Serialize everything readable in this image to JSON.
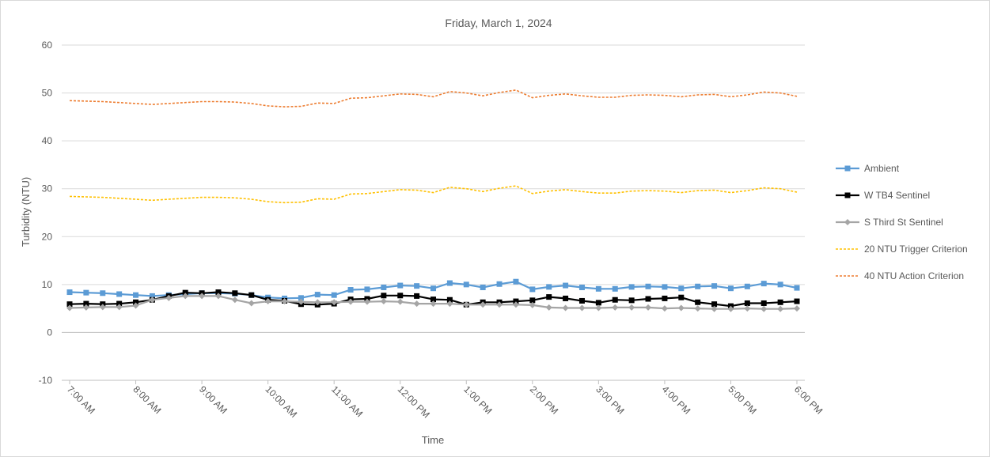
{
  "chart_data": {
    "type": "line",
    "title": "Friday, March 1, 2024",
    "xlabel": "Time",
    "ylabel": "Turbidity (NTU)",
    "ylim": [
      -10,
      60
    ],
    "yticks": [
      -10,
      0,
      10,
      20,
      30,
      40,
      50,
      60
    ],
    "grid": true,
    "legend_position": "right",
    "x_tick_labels": [
      "7:00 AM",
      "8:00 AM",
      "9:00 AM",
      "10:00 AM",
      "11:00 AM",
      "12:00 PM",
      "1:00 PM",
      "2:00 PM",
      "3:00 PM",
      "4:00 PM",
      "5:00 PM",
      "6:00 PM"
    ],
    "x_range_hours": [
      7,
      18
    ],
    "x_hours": [
      7.0,
      7.25,
      7.5,
      7.75,
      8.0,
      8.25,
      8.5,
      8.75,
      9.0,
      9.25,
      9.5,
      9.75,
      10.0,
      10.25,
      10.5,
      10.75,
      11.0,
      11.25,
      11.5,
      11.75,
      12.0,
      12.25,
      12.5,
      12.75,
      13.0,
      13.25,
      13.5,
      13.75,
      14.0,
      14.25,
      14.5,
      14.75,
      15.0,
      15.25,
      15.5,
      15.75,
      16.0,
      16.25,
      16.5,
      16.75,
      17.0,
      17.25,
      17.5,
      17.75,
      18.0
    ],
    "series": [
      {
        "name": "Ambient",
        "color": "#5B9BD5",
        "style": "solid",
        "marker": "square",
        "values": [
          8.4,
          8.3,
          8.2,
          8.0,
          7.8,
          7.6,
          7.8,
          8.0,
          8.2,
          8.2,
          8.1,
          7.8,
          7.3,
          7.1,
          7.2,
          7.9,
          7.8,
          8.9,
          9.0,
          9.4,
          9.8,
          9.7,
          9.2,
          10.3,
          10.0,
          9.4,
          10.1,
          10.6,
          9.0,
          9.5,
          9.8,
          9.4,
          9.1,
          9.1,
          9.5,
          9.6,
          9.5,
          9.2,
          9.6,
          9.7,
          9.2,
          9.6,
          10.2,
          10.0,
          9.3
        ]
      },
      {
        "name": "W TB4 Sentinel",
        "color": "#000000",
        "style": "solid",
        "marker": "square",
        "values": [
          5.9,
          6.0,
          5.9,
          6.0,
          6.3,
          6.8,
          7.6,
          8.3,
          8.2,
          8.4,
          8.2,
          7.8,
          6.8,
          6.6,
          5.9,
          5.8,
          6.0,
          6.9,
          7.0,
          7.7,
          7.7,
          7.6,
          6.9,
          6.8,
          5.8,
          6.3,
          6.3,
          6.5,
          6.7,
          7.4,
          7.1,
          6.6,
          6.2,
          6.8,
          6.7,
          7.0,
          7.1,
          7.3,
          6.3,
          5.9,
          5.5,
          6.1,
          6.1,
          6.3,
          6.5
        ]
      },
      {
        "name": "S Third St Sentinel",
        "color": "#A5A5A5",
        "style": "solid",
        "marker": "diamond",
        "values": [
          5.1,
          5.2,
          5.3,
          5.3,
          5.6,
          6.8,
          7.2,
          7.6,
          7.6,
          7.6,
          6.8,
          6.1,
          6.5,
          6.5,
          6.4,
          6.3,
          6.3,
          6.4,
          6.4,
          6.5,
          6.4,
          6.0,
          6.0,
          6.0,
          5.8,
          5.8,
          5.8,
          5.8,
          5.7,
          5.2,
          5.1,
          5.1,
          5.1,
          5.2,
          5.2,
          5.2,
          5.0,
          5.1,
          5.0,
          4.9,
          4.9,
          5.0,
          4.9,
          4.9,
          5.0
        ]
      },
      {
        "name": "20 NTU Trigger Criterion",
        "color": "#FFC000",
        "style": "dashed",
        "marker": "none",
        "values": [
          28.4,
          28.3,
          28.2,
          28.0,
          27.8,
          27.6,
          27.8,
          28.0,
          28.2,
          28.2,
          28.1,
          27.8,
          27.3,
          27.1,
          27.2,
          27.9,
          27.8,
          28.9,
          29.0,
          29.4,
          29.8,
          29.7,
          29.2,
          30.3,
          30.0,
          29.4,
          30.1,
          30.6,
          29.0,
          29.5,
          29.8,
          29.4,
          29.1,
          29.1,
          29.5,
          29.6,
          29.5,
          29.2,
          29.6,
          29.7,
          29.2,
          29.6,
          30.2,
          30.0,
          29.3
        ]
      },
      {
        "name": "40 NTU Action Criterion",
        "color": "#ED7D31",
        "style": "dashed",
        "marker": "none",
        "values": [
          48.4,
          48.3,
          48.2,
          48.0,
          47.8,
          47.6,
          47.8,
          48.0,
          48.2,
          48.2,
          48.1,
          47.8,
          47.3,
          47.1,
          47.2,
          47.9,
          47.8,
          48.9,
          49.0,
          49.4,
          49.8,
          49.7,
          49.2,
          50.3,
          50.0,
          49.4,
          50.1,
          50.6,
          49.0,
          49.5,
          49.8,
          49.4,
          49.1,
          49.1,
          49.5,
          49.6,
          49.5,
          49.2,
          49.6,
          49.7,
          49.2,
          49.6,
          50.2,
          50.0,
          49.3
        ]
      }
    ]
  }
}
